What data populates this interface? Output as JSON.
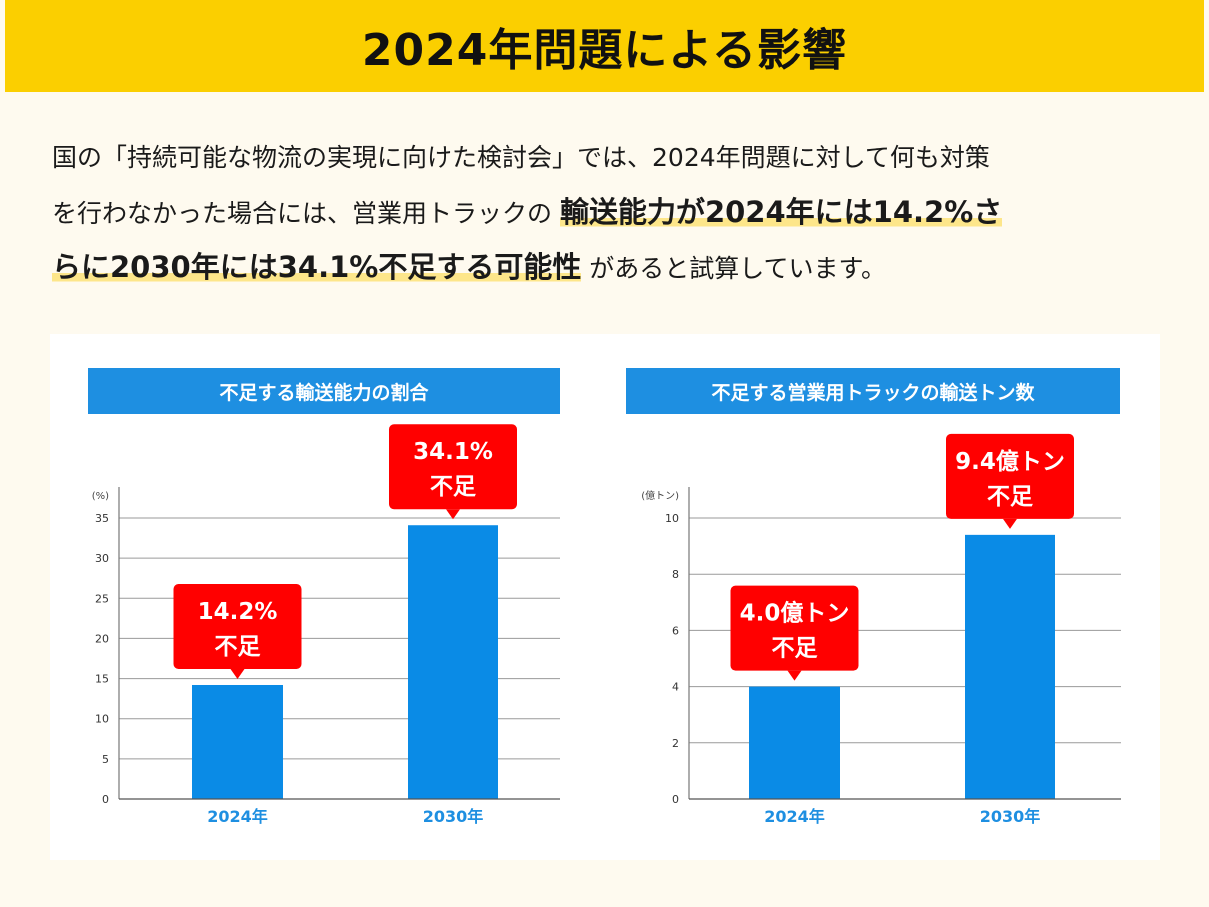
{
  "header": {
    "title": "2024年問題による影響"
  },
  "intro": {
    "lines": [
      [
        {
          "text": "国の「持続可能な物流の実現に向けた検討会」では、2024年問題に対して何も対策",
          "hl": false
        }
      ],
      [
        {
          "text": "を行わなかった場合には、営業用トラックの ",
          "hl": false
        },
        {
          "text": "輸送能力が2024年には14.2%さ",
          "hl": true
        }
      ],
      [
        {
          "text": "らに2030年には34.1%不足する可能性",
          "hl": true
        },
        {
          "text": " があると試算しています。",
          "hl": false
        }
      ]
    ]
  },
  "colors": {
    "bar": "#0a8be6",
    "callout": "#ff0000",
    "title_bg": "#1e8fe1",
    "header_bg": "#fbcf00"
  },
  "chart_data": [
    {
      "type": "bar",
      "title": "不足する輸送能力の割合",
      "ylabel": "(%)",
      "categories": [
        "2024年",
        "2030年"
      ],
      "values": [
        14.2,
        34.1
      ],
      "callouts": [
        [
          "14.2%",
          "不足"
        ],
        [
          "34.1%",
          "不足"
        ]
      ],
      "ylim": [
        0,
        35
      ],
      "yticks": [
        0,
        5,
        10,
        15,
        20,
        25,
        30,
        35
      ],
      "grid": true
    },
    {
      "type": "bar",
      "title": "不足する営業用トラックの輸送トン数",
      "ylabel": "(億トン)",
      "categories": [
        "2024年",
        "2030年"
      ],
      "values": [
        4.0,
        9.4
      ],
      "callouts": [
        [
          "4.0億トン",
          "不足"
        ],
        [
          "9.4億トン",
          "不足"
        ]
      ],
      "ylim": [
        0,
        10
      ],
      "yticks": [
        0,
        2,
        4,
        6,
        8,
        10
      ],
      "grid": true
    }
  ]
}
